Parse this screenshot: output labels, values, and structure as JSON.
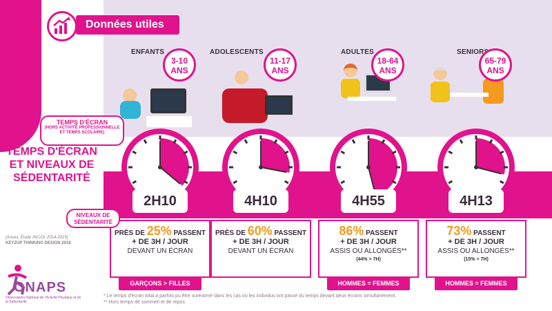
{
  "header": {
    "title": "Données utiles"
  },
  "main_title": "TEMPS D'ÉCRAN ET NIVEAUX DE SÉDENTARITÉ",
  "callouts": {
    "screen_time": "TEMPS D'ÉCRAN",
    "screen_time_sub": "(HORS ACTIVITÉ PROFESSIONNELLE ET TEMPS SCOLAIRE)",
    "sedentary": "NIVEAUX DE SÉDENTARITÉ"
  },
  "source": {
    "line1": "[Anses, Étude INCA3, 2014-2015]",
    "line2": "KEYZUP THINKING DESIGN 2018"
  },
  "logo": {
    "name": "ONAPS",
    "subtitle": "Observatoire National de l'Activité Physique et de la Sédentarité"
  },
  "groups": [
    {
      "label": "ENFANTS",
      "age": "3-10",
      "age_unit": "ANS",
      "duration": "2H10",
      "clock_fraction": 0.36,
      "stat_prefix": "PRÈS DE ",
      "pct": "25%",
      "stat_suffix": " PASSENT",
      "line2": "+ DE 3H / JOUR",
      "line3": "DEVANT UN ÉCRAN",
      "note": "",
      "gender": "GARÇONS > FILLES"
    },
    {
      "label": "ADOLESCENTS",
      "age": "11-17",
      "age_unit": "ANS",
      "duration": "4H10",
      "clock_fraction": 0.28,
      "stat_prefix": "PRÈS DE ",
      "pct": "60%",
      "stat_suffix": " PASSENT",
      "line2": "+ DE 3H / JOUR",
      "line3": "DEVANT UN ÉCRAN",
      "note": "",
      "gender": ""
    },
    {
      "label": "ADULTES",
      "age": "18-64",
      "age_unit": "ANS",
      "duration": "4H55",
      "clock_fraction": 0.46,
      "stat_prefix": "",
      "pct": "86%",
      "stat_suffix": " PASSENT",
      "line2": "+ DE 3H / JOUR",
      "line3": "ASSIS OU ALLONGÉS**",
      "note": "(44% > 7H)",
      "gender": "HOMMES = FEMMES"
    },
    {
      "label": "SENIORS",
      "age": "65-79",
      "age_unit": "ANS",
      "duration": "4H13",
      "clock_fraction": 0.29,
      "stat_prefix": "",
      "pct": "73%",
      "stat_suffix": " PASSENT",
      "line2": "+ DE 3H / JOUR",
      "line3": "ASSIS OU ALLONGÉS**",
      "note": "(15% > 7H)",
      "gender": "HOMMES = FEMMES"
    }
  ],
  "footnotes": {
    "f1": "* Le temps d'écran total a parfois pu être surestimé dans les cas où les individus ont passé du temps devant deux écrans simultanément.",
    "f2": "** Hors temps de sommeil et de repos"
  },
  "colors": {
    "accent": "#e0138c",
    "pct": "#f49a1e",
    "band": "#e8dfee"
  }
}
